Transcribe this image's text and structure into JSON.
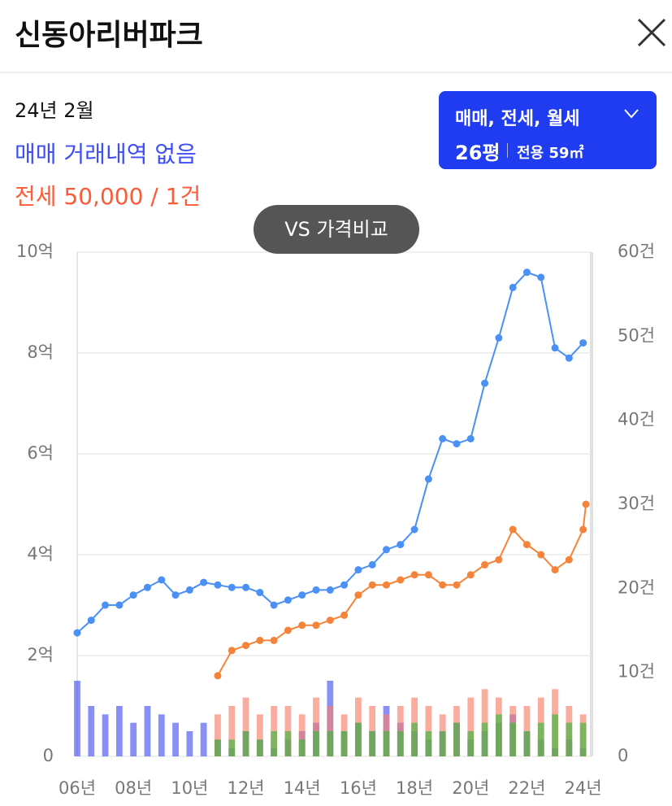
{
  "header": {
    "title": "신동아리버파크"
  },
  "info": {
    "date": "24년 2월",
    "sale": "매매 거래내역 없음",
    "rent": "전세 50,000 / 1건"
  },
  "filter": {
    "types": "매매, 전세, 월세",
    "pyeong": "26평",
    "area": "전용 59㎡"
  },
  "compare": "VS 가격비교",
  "chart_data": {
    "type": "line",
    "xlim": [
      2006,
      2024.3
    ],
    "xticks": [
      {
        "value": 2006,
        "label": "06년"
      },
      {
        "value": 2008,
        "label": "08년"
      },
      {
        "value": 2010,
        "label": "10년"
      },
      {
        "value": 2012,
        "label": "12년"
      },
      {
        "value": 2014,
        "label": "14년"
      },
      {
        "value": 2016,
        "label": "16년"
      },
      {
        "value": 2018,
        "label": "18년"
      },
      {
        "value": 2020,
        "label": "20년"
      },
      {
        "value": 2022,
        "label": "22년"
      },
      {
        "value": 2024,
        "label": "24년"
      }
    ],
    "ylim": [
      0,
      10
    ],
    "yticks": [
      0,
      {
        "value": 2,
        "label": "2억"
      },
      {
        "value": 4,
        "label": "4억"
      },
      {
        "value": 6,
        "label": "6억"
      },
      {
        "value": 8,
        "label": "8억"
      },
      {
        "value": 10,
        "label": "10억"
      }
    ],
    "y2lim": [
      0,
      60
    ],
    "y2ticks": [
      0,
      {
        "value": 10,
        "label": "10건"
      },
      {
        "value": 20,
        "label": "20건"
      },
      {
        "value": 30,
        "label": "30건"
      },
      {
        "value": 40,
        "label": "40건"
      },
      {
        "value": 50,
        "label": "50건"
      },
      {
        "value": 60,
        "label": "60건"
      }
    ],
    "grid": true,
    "series": [
      {
        "type": "bar",
        "axis": "y2",
        "color": "#4a55f0",
        "x": [
          2006,
          2006.5,
          2007,
          2007.5,
          2008,
          2008.5,
          2009,
          2009.5,
          2010,
          2010.5,
          2011,
          2011.5,
          2012,
          2012.5,
          2013,
          2013.5,
          2014,
          2014.5,
          2015,
          2015.5,
          2016,
          2016.5,
          2017,
          2017.5,
          2018,
          2018.5,
          2019,
          2019.5,
          2020,
          2020.5,
          2021,
          2021.5,
          2022,
          2022.5,
          2023,
          2023.5,
          2024
        ],
        "values": [
          9,
          6,
          5,
          6,
          4,
          6,
          5,
          4,
          3,
          4,
          2,
          1,
          3,
          2,
          1,
          2,
          3,
          4,
          9,
          3,
          4,
          3,
          6,
          4,
          3,
          2,
          3,
          4,
          2,
          3,
          4,
          5,
          3,
          2,
          1,
          2,
          1
        ]
      },
      {
        "type": "bar",
        "axis": "y2",
        "color": "#f7806a",
        "x": [
          2011,
          2011.5,
          2012,
          2012.5,
          2013,
          2013.5,
          2014,
          2014.5,
          2015,
          2015.5,
          2016,
          2016.5,
          2017,
          2017.5,
          2018,
          2018.5,
          2019,
          2019.5,
          2020,
          2020.5,
          2021,
          2021.5,
          2022,
          2022.5,
          2023,
          2023.5,
          2024
        ],
        "values": [
          5,
          6,
          7,
          5,
          6,
          6,
          5,
          7,
          6,
          5,
          7,
          6,
          5,
          6,
          7,
          6,
          5,
          6,
          7,
          8,
          7,
          6,
          6,
          7,
          8,
          6,
          5
        ]
      },
      {
        "type": "bar",
        "axis": "y2",
        "color": "#3cb83c",
        "x": [
          2011,
          2011.5,
          2012,
          2012.5,
          2013,
          2013.5,
          2014,
          2014.5,
          2015,
          2015.5,
          2016,
          2016.5,
          2017,
          2017.5,
          2018,
          2018.5,
          2019,
          2019.5,
          2020,
          2020.5,
          2021,
          2021.5,
          2022,
          2022.5,
          2023,
          2023.5,
          2024
        ],
        "values": [
          2,
          2,
          3,
          2,
          3,
          3,
          2,
          3,
          3,
          3,
          4,
          3,
          3,
          3,
          4,
          3,
          3,
          4,
          3,
          4,
          5,
          4,
          3,
          4,
          5,
          4,
          4
        ]
      },
      {
        "type": "line",
        "color": "#4a90f5",
        "x": [
          2006,
          2006.5,
          2007,
          2007.5,
          2008,
          2008.5,
          2009,
          2009.5,
          2010,
          2010.5,
          2011,
          2011.5,
          2012,
          2012.5,
          2013,
          2013.5,
          2014,
          2014.5,
          2015,
          2015.5,
          2016,
          2016.5,
          2017,
          2017.5,
          2018,
          2018.5,
          2019,
          2019.5,
          2020,
          2020.5,
          2021,
          2021.5,
          2022,
          2022.5,
          2023,
          2023.5,
          2024
        ],
        "values": [
          2.45,
          2.7,
          3.0,
          3.0,
          3.2,
          3.35,
          3.5,
          3.2,
          3.3,
          3.45,
          3.4,
          3.35,
          3.35,
          3.25,
          3.0,
          3.1,
          3.2,
          3.3,
          3.3,
          3.4,
          3.7,
          3.8,
          4.1,
          4.2,
          4.5,
          5.5,
          6.3,
          6.2,
          6.3,
          7.4,
          8.3,
          9.3,
          9.6,
          9.5,
          8.1,
          7.9,
          8.2
        ]
      },
      {
        "type": "line",
        "color": "#f5843a",
        "x": [
          2011,
          2011.5,
          2012,
          2012.5,
          2013,
          2013.5,
          2014,
          2014.5,
          2015,
          2015.5,
          2016,
          2016.5,
          2017,
          2017.5,
          2018,
          2018.5,
          2019,
          2019.5,
          2020,
          2020.5,
          2021,
          2021.5,
          2022,
          2022.5,
          2023,
          2023.5,
          2024,
          2024.1
        ],
        "values": [
          1.6,
          2.1,
          2.2,
          2.3,
          2.3,
          2.5,
          2.6,
          2.6,
          2.7,
          2.8,
          3.2,
          3.4,
          3.4,
          3.5,
          3.6,
          3.6,
          3.4,
          3.4,
          3.6,
          3.8,
          3.9,
          4.5,
          4.2,
          4.0,
          3.7,
          3.9,
          4.5,
          5.0
        ]
      }
    ]
  }
}
